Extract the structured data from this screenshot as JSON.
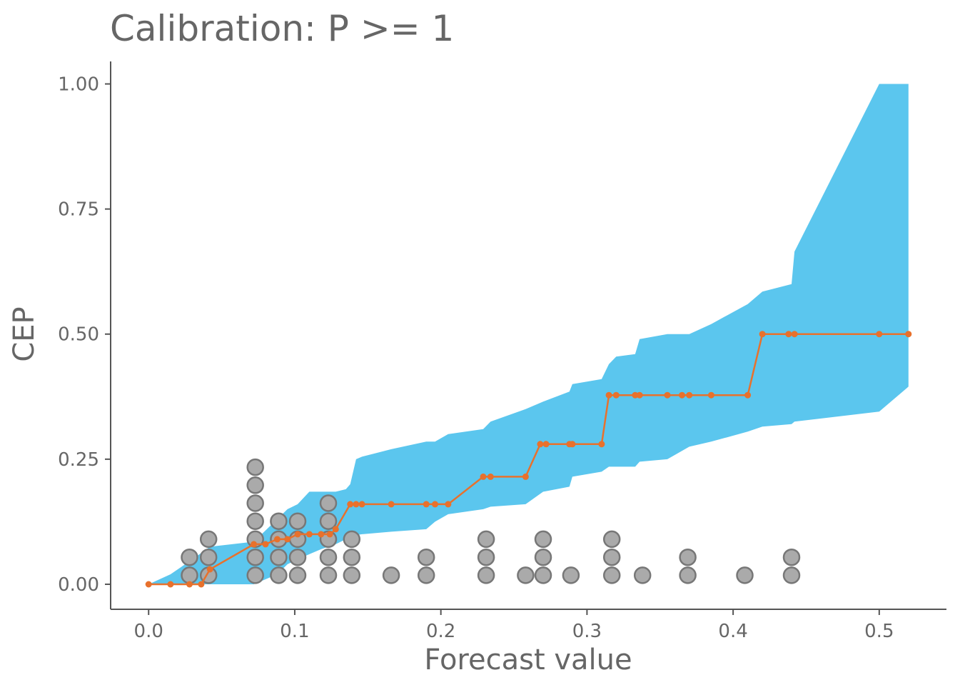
{
  "chart_data": {
    "type": "line",
    "title": "Calibration: P >= 1",
    "xlabel": "Forecast value",
    "ylabel": "CEP",
    "xlim": [
      -0.026,
      0.546
    ],
    "ylim": [
      -0.05,
      1.045
    ],
    "xticks": [
      0.0,
      0.1,
      0.2,
      0.3,
      0.4,
      0.5
    ],
    "xtick_labels": [
      "0.0",
      "0.1",
      "0.2",
      "0.3",
      "0.4",
      "0.5"
    ],
    "yticks": [
      0.0,
      0.25,
      0.5,
      0.75,
      1.0
    ],
    "ytick_labels": [
      "0.00",
      "0.25",
      "0.50",
      "0.75",
      "1.00"
    ],
    "grid": false,
    "legend": "none",
    "colors": {
      "band": "#5BC6EE",
      "line": "#E8712C",
      "dots_fill": "#AAAAAA",
      "dots_stroke": "#777777",
      "text": "#666666"
    },
    "band": {
      "x": [
        0.0,
        0.015,
        0.03,
        0.042,
        0.072,
        0.088,
        0.095,
        0.102,
        0.11,
        0.118,
        0.128,
        0.135,
        0.138,
        0.142,
        0.146,
        0.166,
        0.19,
        0.196,
        0.205,
        0.229,
        0.234,
        0.258,
        0.27,
        0.288,
        0.29,
        0.31,
        0.315,
        0.32,
        0.333,
        0.336,
        0.355,
        0.37,
        0.385,
        0.41,
        0.42,
        0.44,
        0.442,
        0.5,
        0.52
      ],
      "lower": [
        0.0,
        0.0,
        0.0,
        0.0,
        0.0,
        0.02,
        0.04,
        0.05,
        0.06,
        0.07,
        0.08,
        0.09,
        0.095,
        0.098,
        0.1,
        0.105,
        0.11,
        0.125,
        0.14,
        0.15,
        0.155,
        0.16,
        0.185,
        0.195,
        0.215,
        0.225,
        0.235,
        0.235,
        0.235,
        0.245,
        0.25,
        0.275,
        0.285,
        0.305,
        0.315,
        0.32,
        0.325,
        0.345,
        0.395
      ],
      "upper": [
        0.0,
        0.02,
        0.05,
        0.075,
        0.085,
        0.13,
        0.15,
        0.16,
        0.185,
        0.185,
        0.185,
        0.19,
        0.2,
        0.25,
        0.255,
        0.27,
        0.285,
        0.285,
        0.3,
        0.31,
        0.325,
        0.35,
        0.365,
        0.385,
        0.4,
        0.41,
        0.44,
        0.455,
        0.46,
        0.49,
        0.5,
        0.5,
        0.52,
        0.56,
        0.585,
        0.6,
        0.665,
        1.0,
        1.0
      ]
    },
    "series": [
      {
        "x": [
          0.0,
          0.015,
          0.028,
          0.036,
          0.042,
          0.072,
          0.08,
          0.088,
          0.095,
          0.102,
          0.11,
          0.118,
          0.124,
          0.128,
          0.138,
          0.142,
          0.146,
          0.166,
          0.19,
          0.196,
          0.205,
          0.229,
          0.234,
          0.258,
          0.268,
          0.272,
          0.288,
          0.29,
          0.31,
          0.315,
          0.32,
          0.333,
          0.336,
          0.355,
          0.365,
          0.37,
          0.385,
          0.41,
          0.42,
          0.438,
          0.442,
          0.5,
          0.52
        ],
        "values": [
          0.0,
          0.0,
          0.0,
          0.0,
          0.03,
          0.08,
          0.08,
          0.09,
          0.09,
          0.1,
          0.1,
          0.1,
          0.1,
          0.11,
          0.16,
          0.16,
          0.16,
          0.16,
          0.16,
          0.16,
          0.16,
          0.215,
          0.215,
          0.215,
          0.28,
          0.28,
          0.28,
          0.28,
          0.28,
          0.378,
          0.378,
          0.378,
          0.378,
          0.378,
          0.378,
          0.378,
          0.378,
          0.378,
          0.5,
          0.5,
          0.5,
          0.5,
          0.5
        ]
      }
    ],
    "dots": {
      "columns": [
        {
          "x": 0.028,
          "count": 2
        },
        {
          "x": 0.041,
          "count": 3
        },
        {
          "x": 0.073,
          "count": 7
        },
        {
          "x": 0.089,
          "count": 4
        },
        {
          "x": 0.102,
          "count": 4
        },
        {
          "x": 0.123,
          "count": 5
        },
        {
          "x": 0.139,
          "count": 3
        },
        {
          "x": 0.166,
          "count": 1
        },
        {
          "x": 0.19,
          "count": 2
        },
        {
          "x": 0.231,
          "count": 3
        },
        {
          "x": 0.258,
          "count": 1
        },
        {
          "x": 0.27,
          "count": 3
        },
        {
          "x": 0.289,
          "count": 1
        },
        {
          "x": 0.317,
          "count": 3
        },
        {
          "x": 0.338,
          "count": 1
        },
        {
          "x": 0.369,
          "count": 2
        },
        {
          "x": 0.408,
          "count": 1
        },
        {
          "x": 0.44,
          "count": 2
        }
      ]
    }
  }
}
